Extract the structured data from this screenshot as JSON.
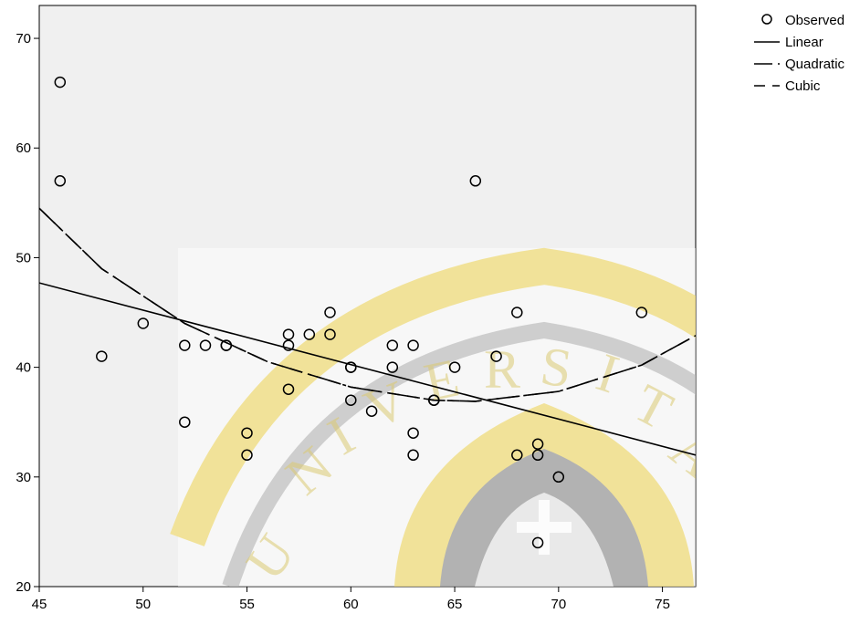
{
  "chart_data": {
    "type": "scatter",
    "title": "",
    "xlabel": "",
    "ylabel": "",
    "xlim": [
      45,
      76.6
    ],
    "ylim": [
      20,
      73
    ],
    "xticks": [
      45,
      50,
      55,
      60,
      65,
      70,
      75
    ],
    "yticks": [
      20,
      30,
      40,
      50,
      60,
      70
    ],
    "grid": false,
    "legend_position": "top-right",
    "colors": {
      "plot_background": "#f0f0f0",
      "axis": "#000000",
      "lines": "#000000",
      "watermark_gold": "#f2e08a",
      "watermark_gray": "#b4b4b4"
    },
    "legend": [
      {
        "label": "Observed",
        "style": "circle"
      },
      {
        "label": "Linear",
        "style": "solid"
      },
      {
        "label": "Quadratic",
        "style": "dash"
      },
      {
        "label": "Cubic",
        "style": "longdash"
      }
    ],
    "observed": [
      {
        "x": 46,
        "y": 66
      },
      {
        "x": 46,
        "y": 57
      },
      {
        "x": 48,
        "y": 41
      },
      {
        "x": 50,
        "y": 44
      },
      {
        "x": 52,
        "y": 42
      },
      {
        "x": 52,
        "y": 35
      },
      {
        "x": 53,
        "y": 42
      },
      {
        "x": 54,
        "y": 42
      },
      {
        "x": 54,
        "y": 42
      },
      {
        "x": 55,
        "y": 34
      },
      {
        "x": 55,
        "y": 32
      },
      {
        "x": 57,
        "y": 43
      },
      {
        "x": 57,
        "y": 42
      },
      {
        "x": 57,
        "y": 38
      },
      {
        "x": 58,
        "y": 43
      },
      {
        "x": 59,
        "y": 45
      },
      {
        "x": 59,
        "y": 43
      },
      {
        "x": 60,
        "y": 40
      },
      {
        "x": 60,
        "y": 40
      },
      {
        "x": 60,
        "y": 37
      },
      {
        "x": 61,
        "y": 36
      },
      {
        "x": 62,
        "y": 42
      },
      {
        "x": 62,
        "y": 40
      },
      {
        "x": 63,
        "y": 42
      },
      {
        "x": 63,
        "y": 34
      },
      {
        "x": 63,
        "y": 32
      },
      {
        "x": 64,
        "y": 37
      },
      {
        "x": 64,
        "y": 37
      },
      {
        "x": 65,
        "y": 40
      },
      {
        "x": 66,
        "y": 57
      },
      {
        "x": 67,
        "y": 41
      },
      {
        "x": 68,
        "y": 45
      },
      {
        "x": 68,
        "y": 32
      },
      {
        "x": 69,
        "y": 33
      },
      {
        "x": 69,
        "y": 32
      },
      {
        "x": 69,
        "y": 24
      },
      {
        "x": 70,
        "y": 30
      },
      {
        "x": 74,
        "y": 45
      }
    ],
    "fits": {
      "linear": {
        "x": [
          45,
          76.6
        ],
        "y": [
          47.7,
          32.0
        ]
      },
      "quadratic": {
        "x": [
          45,
          48,
          52,
          56,
          60,
          64,
          66,
          70,
          74,
          76.6
        ],
        "y": [
          54.5,
          49.0,
          44.0,
          40.5,
          38.2,
          37.0,
          36.9,
          37.8,
          40.2,
          42.9
        ]
      },
      "cubic": {
        "x": [
          45,
          48,
          52,
          56,
          60,
          64,
          66,
          70,
          74,
          76.6
        ],
        "y": [
          54.5,
          49.0,
          44.0,
          40.5,
          38.2,
          37.0,
          36.9,
          37.8,
          40.2,
          42.9
        ]
      }
    }
  }
}
